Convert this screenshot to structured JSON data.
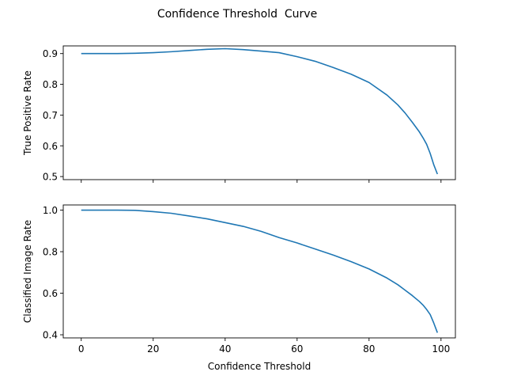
{
  "figure": {
    "title": "Confidence Threshold  Curve"
  },
  "chart_data": [
    {
      "type": "line",
      "xlabel": "",
      "ylabel": "True Positive Rate",
      "xlim": [
        -5,
        104
      ],
      "ylim": [
        0.49,
        0.925
      ],
      "x_ticks": [
        0,
        20,
        40,
        60,
        80,
        100
      ],
      "y_ticks": [
        0.5,
        0.6,
        0.7,
        0.8,
        0.9
      ],
      "x_tick_labels_visible": false,
      "series": [
        {
          "color": "#1f77b4",
          "x": [
            0,
            5,
            10,
            15,
            20,
            25,
            30,
            35,
            40,
            45,
            50,
            55,
            60,
            65,
            70,
            75,
            80,
            85,
            88,
            90,
            92,
            94,
            95,
            96,
            97,
            98,
            99
          ],
          "y": [
            0.9,
            0.9,
            0.9,
            0.901,
            0.903,
            0.906,
            0.91,
            0.914,
            0.916,
            0.913,
            0.908,
            0.903,
            0.89,
            0.875,
            0.855,
            0.833,
            0.806,
            0.765,
            0.733,
            0.707,
            0.677,
            0.645,
            0.626,
            0.605,
            0.575,
            0.538,
            0.508
          ]
        }
      ]
    },
    {
      "type": "line",
      "xlabel": "Confidence Threshold",
      "ylabel": "Classified Image Rate",
      "xlim": [
        -5,
        104
      ],
      "ylim": [
        0.385,
        1.025
      ],
      "x_ticks": [
        0,
        20,
        40,
        60,
        80,
        100
      ],
      "y_ticks": [
        0.4,
        0.6,
        0.8,
        1.0
      ],
      "x_tick_labels_visible": true,
      "series": [
        {
          "color": "#1f77b4",
          "x": [
            0,
            5,
            10,
            15,
            20,
            25,
            30,
            35,
            40,
            45,
            50,
            55,
            60,
            65,
            70,
            75,
            80,
            85,
            88,
            90,
            92,
            94,
            95,
            96,
            97,
            98,
            99
          ],
          "y": [
            1.0,
            1.0,
            1.0,
            0.999,
            0.993,
            0.985,
            0.972,
            0.958,
            0.94,
            0.922,
            0.898,
            0.868,
            0.842,
            0.813,
            0.784,
            0.752,
            0.717,
            0.673,
            0.641,
            0.615,
            0.589,
            0.56,
            0.543,
            0.522,
            0.497,
            0.456,
            0.41
          ]
        }
      ]
    }
  ]
}
